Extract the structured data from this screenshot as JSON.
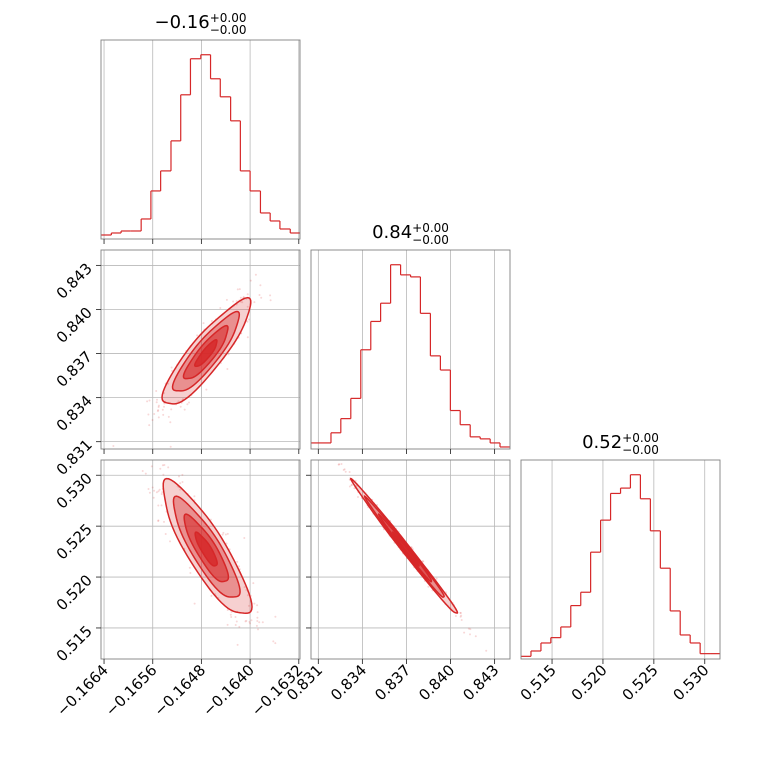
{
  "chart_data": {
    "type": "corner",
    "color": "#d62728",
    "grid": true,
    "parameters": [
      {
        "title": "−0.16",
        "err_plus": "+0.00",
        "err_minus": "−0.00",
        "range": [
          -0.16645,
          -0.16318
        ],
        "ticks": [
          -0.1664,
          -0.1656,
          -0.1648,
          -0.164,
          -0.1632
        ],
        "tick_labels": [
          "−0.1664",
          "−0.1656",
          "−0.1648",
          "−0.1640",
          "−0.1632"
        ]
      },
      {
        "title": "0.84",
        "err_plus": "+0.00",
        "err_minus": "−0.00",
        "range": [
          0.8305,
          0.84405
        ],
        "ticks": [
          0.831,
          0.834,
          0.837,
          0.84,
          0.843
        ],
        "tick_labels": [
          "0.831",
          "0.834",
          "0.837",
          "0.840",
          "0.843"
        ]
      },
      {
        "title": "0.52",
        "err_plus": "+0.00",
        "err_minus": "−0.00",
        "range": [
          0.51195,
          0.5315
        ],
        "ticks": [
          0.515,
          0.52,
          0.525,
          0.53
        ],
        "tick_labels": [
          "0.515",
          "0.520",
          "0.525",
          "0.530"
        ]
      }
    ],
    "histograms": [
      {
        "param": 0,
        "edges": [
          -0.16645,
          -0.16628,
          -0.16612,
          -0.16596,
          -0.16579,
          -0.16563,
          -0.16547,
          -0.1653,
          -0.16514,
          -0.16498,
          -0.16481,
          -0.16465,
          -0.16449,
          -0.16432,
          -0.16416,
          -0.164,
          -0.16383,
          -0.16367,
          -0.16351,
          -0.16334,
          -0.16318
        ],
        "counts": [
          2,
          3,
          4,
          4,
          10,
          24,
          34,
          49,
          72,
          90,
          92,
          80,
          71,
          59,
          34,
          24,
          13,
          9,
          5,
          3
        ]
      },
      {
        "param": 1,
        "edges": [
          0.8305,
          0.83118,
          0.83186,
          0.83253,
          0.83321,
          0.83389,
          0.83457,
          0.83524,
          0.83592,
          0.8366,
          0.83728,
          0.83795,
          0.83863,
          0.83931,
          0.83999,
          0.84066,
          0.84134,
          0.84202,
          0.8427,
          0.84337,
          0.84405
        ],
        "counts": [
          3,
          3,
          8,
          15,
          25,
          49,
          63,
          72,
          91,
          86,
          85,
          67,
          46,
          39,
          19,
          12,
          6,
          5,
          3,
          1
        ]
      },
      {
        "param": 2,
        "edges": [
          0.51195,
          0.51293,
          0.51391,
          0.51488,
          0.51586,
          0.51684,
          0.51782,
          0.51879,
          0.51977,
          0.52075,
          0.52173,
          0.5227,
          0.52368,
          0.52466,
          0.52564,
          0.52661,
          0.52759,
          0.52857,
          0.52955,
          0.53052,
          0.5315
        ],
        "counts": [
          1,
          3,
          6,
          8,
          12,
          20,
          25,
          40,
          52,
          62,
          64,
          69,
          60,
          48,
          34,
          18,
          9,
          6,
          2,
          2
        ]
      }
    ],
    "pairs": [
      {
        "x_param": 0,
        "y_param": 1,
        "mean": [
          -0.16472,
          0.837
        ],
        "sigma": [
          0.00036,
          0.0018
        ],
        "rho": 0.88,
        "contour_levels_sigma": [
          0.5,
          1.0,
          1.5,
          2.0
        ],
        "sample_count": 520
      },
      {
        "x_param": 0,
        "y_param": 2,
        "mean": [
          -0.16472,
          0.5227
        ],
        "sigma": [
          0.00036,
          0.0033
        ],
        "rho": -0.86,
        "contour_levels_sigma": [
          0.5,
          1.0,
          1.5,
          2.0
        ],
        "sample_count": 520
      },
      {
        "x_param": 1,
        "y_param": 2,
        "mean": [
          0.837,
          0.5227
        ],
        "sigma": [
          0.0018,
          0.0033
        ],
        "rho": -0.995,
        "contour_levels_sigma": [
          0.5,
          1.0,
          1.5,
          2.0
        ],
        "sample_count": 520
      }
    ]
  }
}
